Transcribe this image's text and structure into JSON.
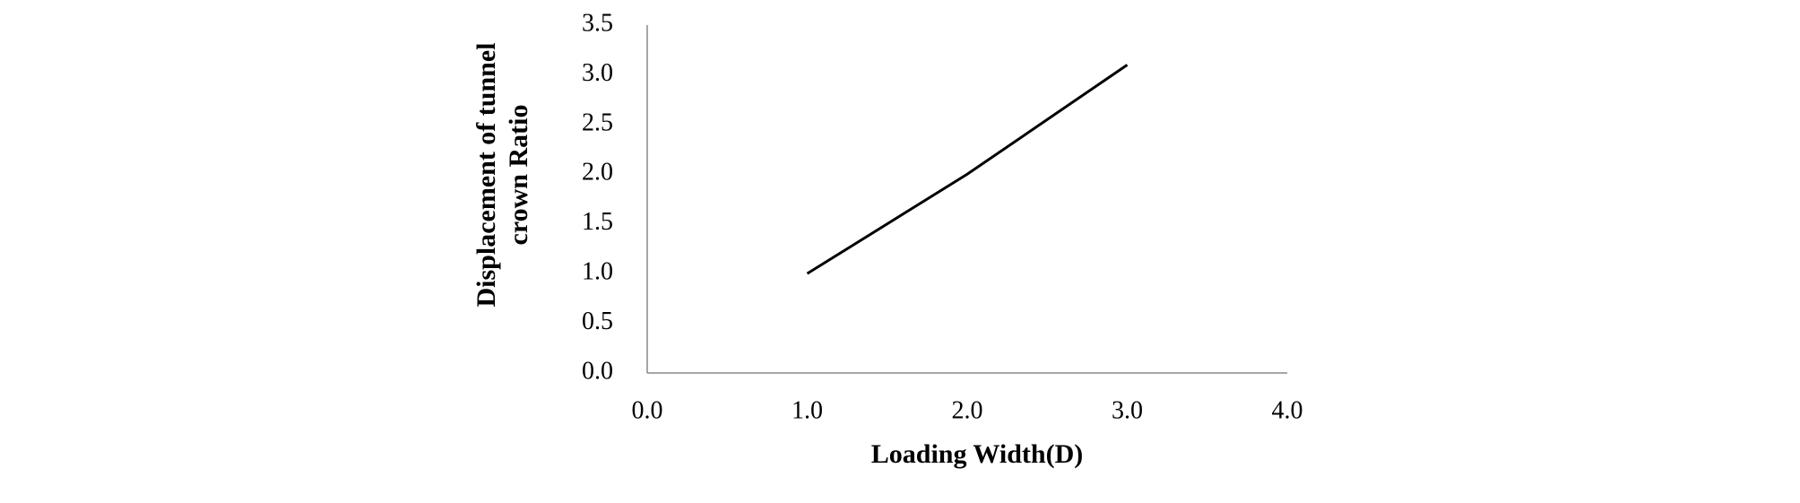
{
  "chart_data": {
    "type": "line",
    "xlabel": "Loading Width(D)",
    "ylabel": [
      "Displacement of tunnel",
      "crown Ratio"
    ],
    "x": [
      1,
      2,
      3
    ],
    "values": [
      1,
      2,
      3.1
    ],
    "color": "#000000",
    "xlim": [
      0,
      4
    ],
    "xticks": [
      {
        "value": 0,
        "label": "0.0"
      },
      {
        "value": 1,
        "label": "1.0"
      },
      {
        "value": 2,
        "label": "2.0"
      },
      {
        "value": 3,
        "label": "3.0"
      },
      {
        "value": 4,
        "label": "4.0"
      }
    ],
    "ylim": [
      0,
      3.5
    ],
    "yticks": [
      {
        "value": 0,
        "label": "0.0"
      },
      0.5,
      {
        "value": 1,
        "label": "1.0"
      },
      1.5,
      {
        "value": 2,
        "label": "2.0"
      },
      2.5,
      {
        "value": 3,
        "label": "3.0"
      },
      3.5
    ],
    "grid": false
  }
}
